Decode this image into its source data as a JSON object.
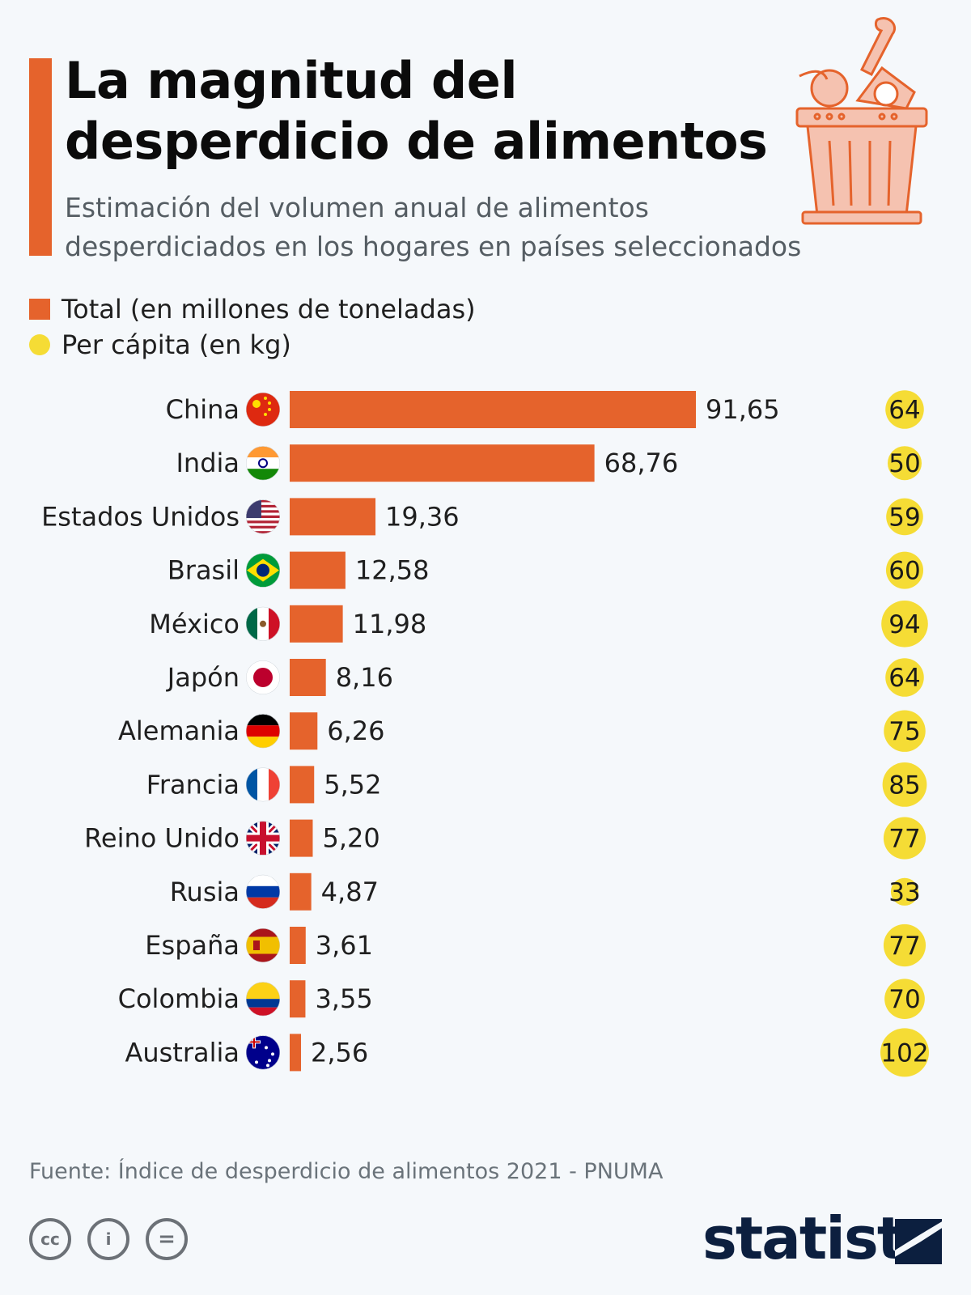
{
  "title_line1": "La magnitud del",
  "title_line2": "desperdicio de alimentos",
  "subtitle_line1": "Estimación del volumen anual de alimentos",
  "subtitle_line2": "desperdiciados en los hogares en países seleccionados",
  "legend": [
    {
      "label": "Total (en millones de toneladas)",
      "marker": "square",
      "color": "#e5632c"
    },
    {
      "label": "Per cápita (en kg)",
      "marker": "circle",
      "color": "#f5dc35"
    }
  ],
  "chart_data": {
    "type": "bar",
    "orientation": "horizontal",
    "categories": [
      "China",
      "India",
      "Estados Unidos",
      "Brasil",
      "México",
      "Japón",
      "Alemania",
      "Francia",
      "Reino Unido",
      "Rusia",
      "España",
      "Colombia",
      "Australia"
    ],
    "series": [
      {
        "name": "Total (en millones de toneladas)",
        "values": [
          91.65,
          68.76,
          19.36,
          12.58,
          11.98,
          8.16,
          6.26,
          5.52,
          5.2,
          4.87,
          3.61,
          3.55,
          2.56
        ],
        "labels": [
          "91,65",
          "68,76",
          "19,36",
          "12,58",
          "11,98",
          "8,16",
          "6,26",
          "5,52",
          "5,20",
          "4,87",
          "3,61",
          "3,55",
          "2,56"
        ],
        "color": "#e5632c"
      },
      {
        "name": "Per cápita (en kg)",
        "values": [
          64,
          50,
          59,
          60,
          94,
          64,
          75,
          85,
          77,
          33,
          77,
          70,
          102
        ],
        "labels": [
          "64",
          "50",
          "59",
          "60",
          "94",
          "64",
          "75",
          "85",
          "77",
          "33",
          "77",
          "70",
          "102"
        ],
        "color": "#f5dc35",
        "marker": "circle sized by value"
      }
    ],
    "flags": [
      "china-flag-icon",
      "india-flag-icon",
      "usa-flag-icon",
      "brazil-flag-icon",
      "mexico-flag-icon",
      "japan-flag-icon",
      "germany-flag-icon",
      "france-flag-icon",
      "uk-flag-icon",
      "russia-flag-icon",
      "spain-flag-icon",
      "colombia-flag-icon",
      "australia-flag-icon"
    ],
    "xlim": [
      0,
      100
    ],
    "grid": false
  },
  "source": "Fuente: Índice de desperdicio de alimentos 2021 - PNUMA",
  "license_icons": [
    "cc-icon",
    "attribution-icon",
    "no-derivatives-icon"
  ],
  "license_glyphs": [
    "cc",
    "i",
    "="
  ],
  "brand": "statista",
  "colors": {
    "accent": "#e5632c",
    "per_capita": "#f5dc35",
    "brand": "#0c1f3f",
    "background": "#f5f8fb"
  }
}
